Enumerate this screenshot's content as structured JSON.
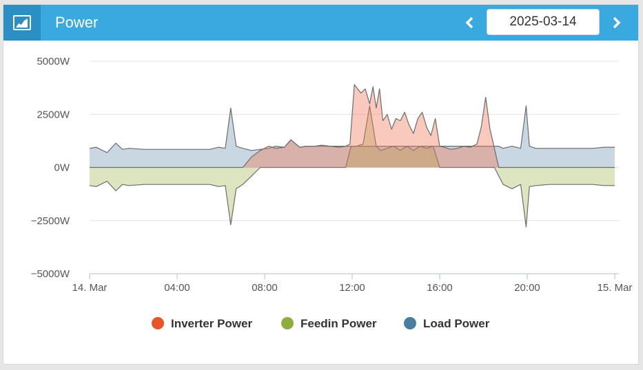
{
  "header": {
    "title": "Power",
    "date": "2025-03-14",
    "icon": "area-chart-icon",
    "prev_icon": "chevron-left-icon",
    "next_icon": "chevron-right-icon"
  },
  "colors": {
    "header_bg": "#3aa9e0",
    "header_icon_bg": "#2b8fc4",
    "inverter": "#e8552a",
    "feedin": "#8ead3e",
    "load": "#497e9e"
  },
  "chart_data": {
    "type": "area",
    "ylim": [
      -5000,
      5000
    ],
    "yticks": [
      5000,
      2500,
      0,
      -2500,
      -5000
    ],
    "ytick_labels": [
      "5000W",
      "2500W",
      "0W",
      "−2500W",
      "−5000W"
    ],
    "xlim": [
      0,
      24
    ],
    "xticks": [
      0,
      4,
      8,
      12,
      16,
      20,
      24
    ],
    "xtick_labels": [
      "14. Mar",
      "04:00",
      "08:00",
      "12:00",
      "16:00",
      "20:00",
      "15. Mar"
    ],
    "grid": true,
    "legend_position": "bottom",
    "series": [
      {
        "name": "Inverter Power",
        "x": [
          0,
          7.0,
          7.4,
          7.8,
          8.2,
          8.5,
          8.9,
          9.2,
          9.6,
          9.9,
          10.3,
          10.6,
          11.0,
          11.4,
          11.7,
          11.9,
          12.1,
          12.4,
          12.6,
          12.8,
          12.95,
          13.1,
          13.25,
          13.4,
          13.6,
          13.8,
          14.0,
          14.2,
          14.4,
          14.6,
          14.8,
          15.0,
          15.2,
          15.4,
          15.6,
          15.8,
          16.0,
          16.2,
          16.5,
          16.8,
          17.1,
          17.4,
          17.7,
          17.9,
          18.1,
          18.3,
          18.5,
          18.7,
          19.0,
          24
        ],
        "values": [
          0,
          0,
          500,
          800,
          1000,
          900,
          950,
          1300,
          950,
          1000,
          1000,
          1050,
          1000,
          950,
          1000,
          1100,
          3900,
          3500,
          3700,
          3000,
          3800,
          2800,
          3700,
          2200,
          2500,
          1800,
          2300,
          2200,
          2600,
          2000,
          1600,
          2300,
          2600,
          1900,
          1500,
          2300,
          1000,
          950,
          850,
          900,
          1000,
          950,
          1100,
          1900,
          3300,
          1800,
          900,
          0,
          0,
          0
        ]
      },
      {
        "name": "Feedin Power",
        "x": [
          0,
          0.3,
          0.8,
          1.2,
          1.5,
          1.8,
          2.5,
          3.5,
          4.5,
          5.5,
          5.9,
          6.2,
          6.45,
          6.7,
          7.0,
          7.4,
          7.8,
          8.2,
          9.0,
          10.0,
          11.0,
          11.7,
          11.95,
          12.2,
          12.5,
          12.8,
          13.1,
          13.3,
          13.6,
          13.9,
          14.2,
          14.5,
          14.8,
          15.1,
          15.4,
          15.7,
          16.0,
          16.3,
          17.0,
          18.0,
          18.5,
          18.7,
          18.9,
          19.3,
          19.7,
          19.95,
          20.1,
          20.4,
          21.0,
          22.0,
          23.0,
          23.5,
          24
        ],
        "values": [
          -850,
          -900,
          -650,
          -1100,
          -800,
          -850,
          -800,
          -800,
          -800,
          -800,
          -900,
          -850,
          -2700,
          -1000,
          -800,
          -400,
          0,
          0,
          0,
          0,
          0,
          0,
          1000,
          1000,
          1100,
          2900,
          1000,
          800,
          900,
          1000,
          800,
          1000,
          800,
          1000,
          900,
          1000,
          0,
          0,
          0,
          0,
          0,
          -400,
          -800,
          -1000,
          -800,
          -2800,
          -900,
          -850,
          -800,
          -800,
          -800,
          -850,
          -850
        ]
      },
      {
        "name": "Load Power",
        "x": [
          0,
          0.3,
          0.8,
          1.2,
          1.5,
          1.8,
          2.5,
          3.5,
          4.5,
          5.5,
          5.9,
          6.2,
          6.45,
          6.7,
          7.0,
          7.4,
          7.8,
          8.2,
          8.5,
          8.9,
          9.2,
          9.6,
          9.9,
          10.3,
          11.0,
          12.0,
          13.0,
          14.0,
          15.0,
          16.0,
          17.0,
          18.0,
          18.5,
          18.7,
          18.9,
          19.3,
          19.7,
          19.95,
          20.1,
          20.4,
          21.0,
          22.0,
          23.0,
          23.5,
          24
        ],
        "values": [
          900,
          950,
          700,
          1150,
          850,
          900,
          850,
          850,
          850,
          850,
          950,
          900,
          2800,
          1000,
          900,
          800,
          850,
          900,
          1000,
          950,
          1300,
          950,
          1000,
          1000,
          1000,
          1000,
          1000,
          1000,
          1000,
          1000,
          1000,
          1000,
          1000,
          1000,
          900,
          1000,
          900,
          2900,
          1000,
          900,
          900,
          900,
          900,
          950,
          950
        ]
      }
    ]
  }
}
